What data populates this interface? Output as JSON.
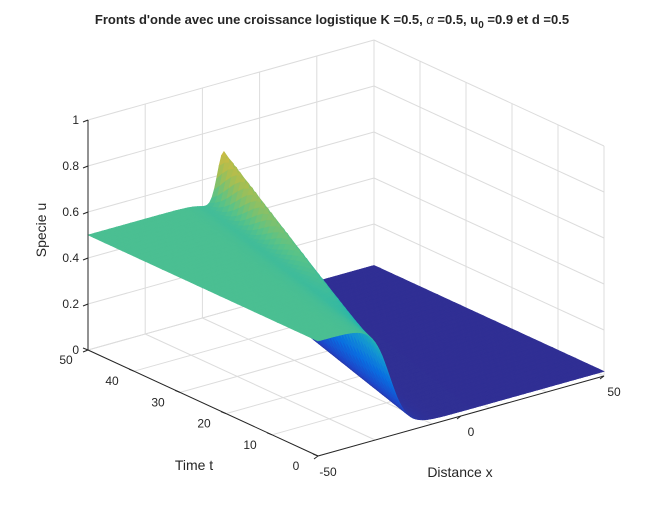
{
  "chart_data": {
    "type": "surface",
    "title": {
      "prefix": "Fronts d'onde avec une croissance logistique K =0.5, ",
      "alpha_symbol": "α",
      "alpha_part": " =0.5, u",
      "u_subscript": "0",
      "suffix": " =0.9 et d =0.5"
    },
    "xlabel": "Distance x",
    "ylabel": "Time t",
    "zlabel": "Specie u",
    "xlim": [
      -50,
      50
    ],
    "ylim": [
      0,
      50
    ],
    "zlim": [
      0,
      1
    ],
    "x_ticks": [
      {
        "value": -50,
        "label": "-50"
      },
      {
        "value": 0,
        "label": "0"
      },
      {
        "value": 50,
        "label": "50"
      }
    ],
    "y_ticks": [
      {
        "value": 0,
        "label": "0"
      },
      {
        "value": 10,
        "label": "10"
      },
      {
        "value": 20,
        "label": "20"
      },
      {
        "value": 30,
        "label": "30"
      },
      {
        "value": 40,
        "label": "40"
      },
      {
        "value": 50,
        "label": "50"
      }
    ],
    "z_ticks": [
      {
        "value": 0,
        "label": "0"
      },
      {
        "value": 0.2,
        "label": "0.2"
      },
      {
        "value": 0.4,
        "label": "0.4"
      },
      {
        "value": 0.6,
        "label": "0.6"
      },
      {
        "value": 0.8,
        "label": "0.8"
      },
      {
        "value": 1,
        "label": "1"
      }
    ],
    "grid": true,
    "colormap": "parula",
    "surface_model": {
      "plateau_value": 0.5,
      "ahead_value": 0.02,
      "front_position_at_t0": -25,
      "front_speed": 0.5,
      "front_width": 3,
      "overshoot_amplitude": 0.35,
      "overshoot_width": 3.5
    },
    "notable_values": {
      "plateau_u": 0.5,
      "peak_u_near_front_at_t50": 0.85
    }
  }
}
